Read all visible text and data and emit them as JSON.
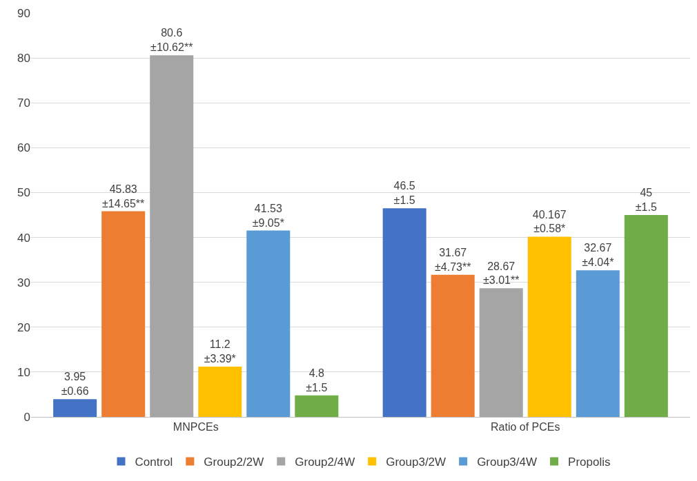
{
  "chart_data": {
    "type": "bar",
    "categories": [
      "MNPCEs",
      "Ratio of PCEs"
    ],
    "series": [
      {
        "name": "Control",
        "color": "#4472c4",
        "values": [
          3.95,
          46.5
        ],
        "value_labels": [
          "3.95\n±0.66",
          "46.5\n±1.5"
        ]
      },
      {
        "name": "Group2/2W",
        "color": "#ed7d31",
        "values": [
          45.83,
          31.67
        ],
        "value_labels": [
          "45.83\n±14.65**",
          "31.67\n±4.73**"
        ]
      },
      {
        "name": "Group2/4W",
        "color": "#a5a5a5",
        "values": [
          80.6,
          28.67
        ],
        "value_labels": [
          "80.6\n±10.62**",
          "28.67\n±3.01**"
        ]
      },
      {
        "name": "Group3/2W",
        "color": "#ffc000",
        "values": [
          11.2,
          40.167
        ],
        "value_labels": [
          "11.2\n±3.39*",
          "40.167\n±0.58*"
        ]
      },
      {
        "name": "Group3/4W",
        "color": "#5b9bd5",
        "values": [
          41.53,
          32.67
        ],
        "value_labels": [
          "41.53\n±9.05*",
          "32.67\n±4.04*"
        ]
      },
      {
        "name": "Propolis",
        "color": "#70ad47",
        "values": [
          4.8,
          45
        ],
        "value_labels": [
          "4.8\n±1.5",
          "45\n±1.5"
        ]
      }
    ],
    "ylim": [
      0,
      90
    ],
    "yticks": [
      0,
      10,
      20,
      30,
      40,
      50,
      60,
      70,
      80,
      90
    ],
    "grid": "y",
    "legend": "bottom"
  }
}
